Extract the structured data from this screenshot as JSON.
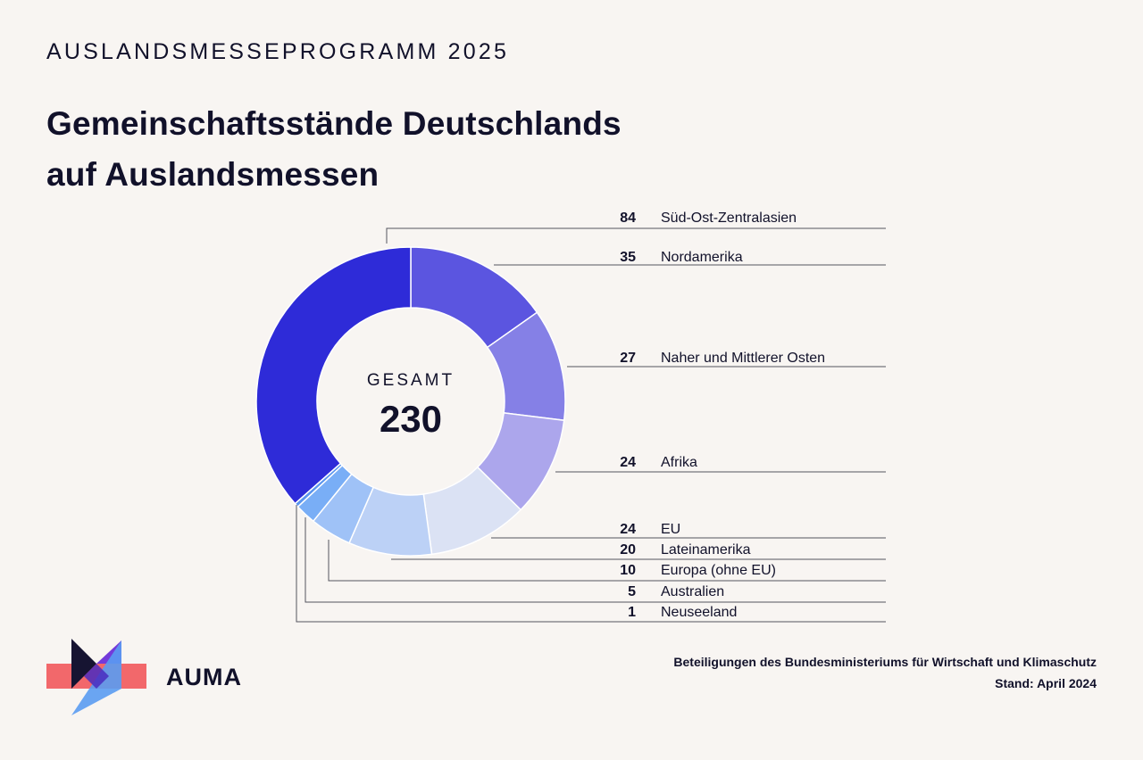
{
  "header": {
    "overline": "AUSLANDSMESSEPROGRAMM 2025",
    "title_line1": "Gemeinschaftsstände Deutschlands",
    "title_line2": "auf Auslandsmessen"
  },
  "chart_data": {
    "type": "pie",
    "variant": "donut",
    "center_label": "GESAMT",
    "center_value": "230",
    "series": [
      {
        "name": "Süd-Ost-Zentralasien",
        "value": 84,
        "color": "#2e2bd8"
      },
      {
        "name": "Nordamerika",
        "value": 35,
        "color": "#5b55e0"
      },
      {
        "name": "Naher und Mittlerer Osten",
        "value": 27,
        "color": "#8580e6"
      },
      {
        "name": "Afrika",
        "value": 24,
        "color": "#aca6ec"
      },
      {
        "name": "EU",
        "value": 24,
        "color": "#dbe2f4"
      },
      {
        "name": "Lateinamerika",
        "value": 20,
        "color": "#bcd1f6"
      },
      {
        "name": "Europa (ohne EU)",
        "value": 10,
        "color": "#9fc2f7"
      },
      {
        "name": "Australien",
        "value": 5,
        "color": "#79aef6"
      },
      {
        "name": "Neuseeland",
        "value": 1,
        "color": "#5a95ee"
      }
    ]
  },
  "footer": {
    "line1": "Beteiligungen des Bundesministeriums für Wirtschaft und Klimaschutz",
    "line2": "Stand: April 2024"
  },
  "brand": {
    "name": "AUMA"
  },
  "colors": {
    "background": "#f8f5f2",
    "text": "#11112a",
    "leader": "#55555f",
    "logo_red": "#f2686b",
    "logo_blue": "#5a9cf2",
    "logo_dark": "#161432",
    "logo_purple": "#6c2fd8"
  }
}
